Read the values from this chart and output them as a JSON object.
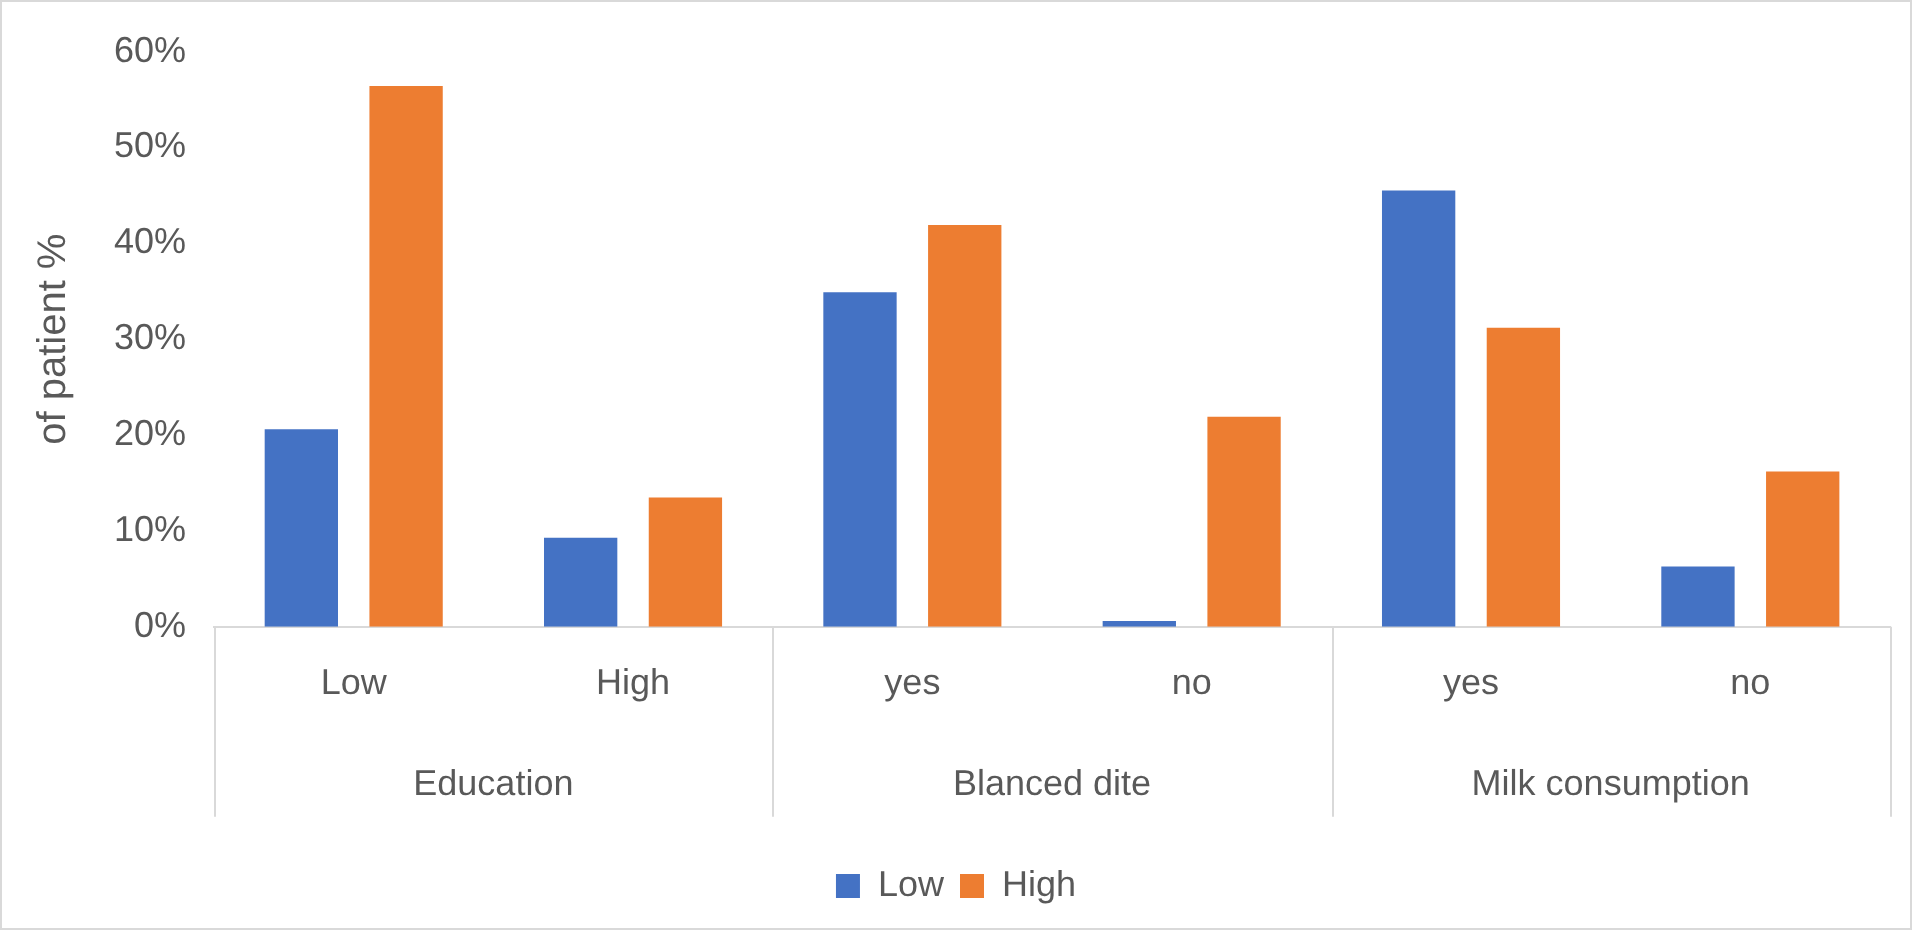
{
  "chart_data": {
    "type": "bar",
    "ylabel": "of patient %",
    "categories": [
      "Low",
      "High",
      "yes",
      "no",
      "yes",
      "no"
    ],
    "annotations": [
      "Education",
      "Blanced dite",
      "Milk consumption"
    ],
    "series": [
      {
        "name": "Low",
        "color": "#4472c4",
        "values": [
          20.6,
          9.3,
          34.9,
          0.6,
          45.5,
          6.3
        ]
      },
      {
        "name": "High",
        "color": "#ed7d31",
        "values": [
          56.4,
          13.5,
          41.9,
          21.9,
          31.2,
          16.2
        ]
      }
    ],
    "ylim": [
      0,
      60
    ],
    "yticks": [
      {
        "value": 0,
        "label": "0%"
      },
      {
        "value": 10,
        "label": "10%"
      },
      {
        "value": 20,
        "label": "20%"
      },
      {
        "value": 30,
        "label": "30%"
      },
      {
        "value": 40,
        "label": "40%"
      },
      {
        "value": 50,
        "label": "50%"
      },
      {
        "value": 60,
        "label": "60%"
      }
    ],
    "grid": false,
    "legend": "bottom"
  }
}
